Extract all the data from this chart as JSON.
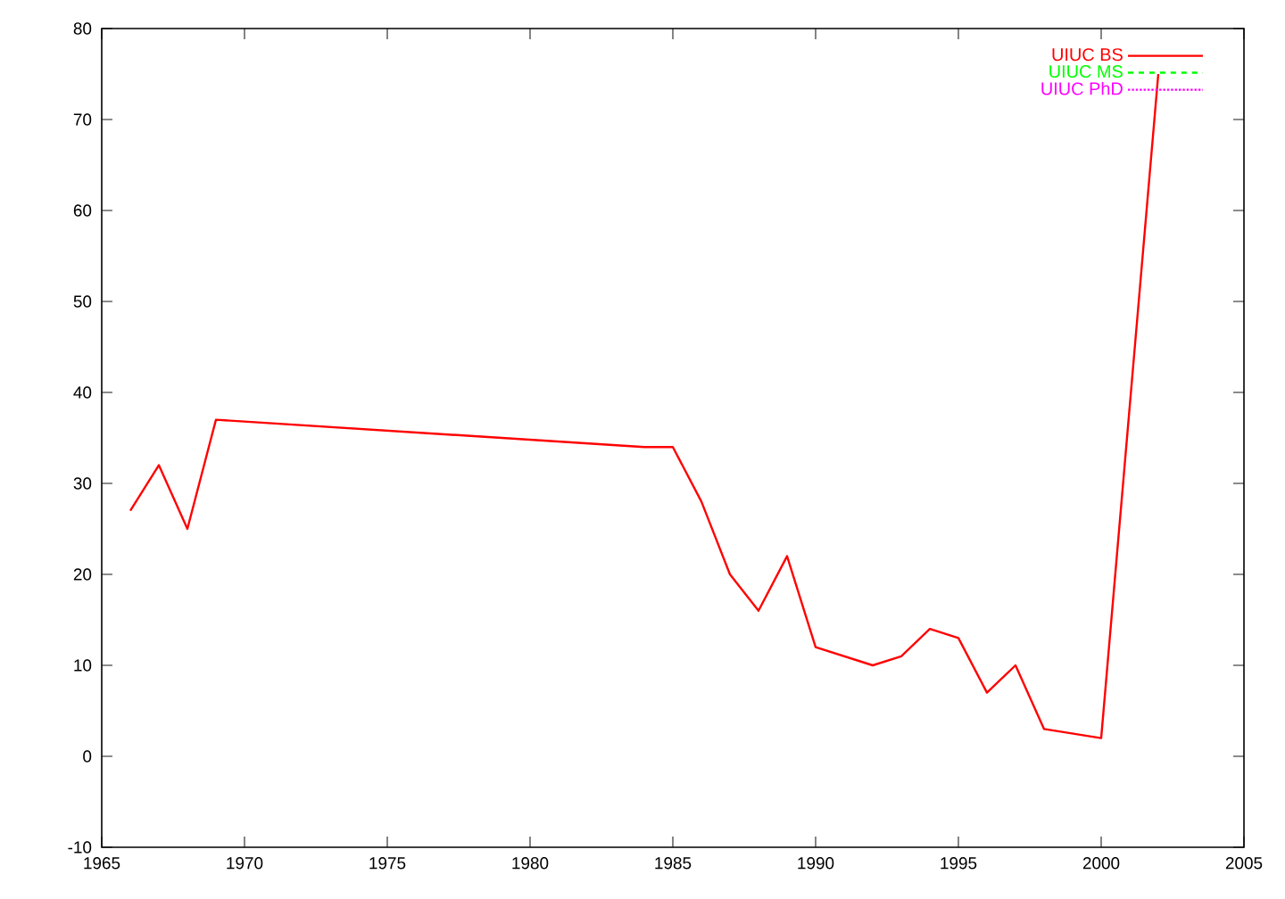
{
  "chart_data": {
    "type": "line",
    "xlim": [
      1965,
      2005
    ],
    "ylim": [
      -10,
      80
    ],
    "xticks": [
      1965,
      1970,
      1975,
      1980,
      1985,
      1990,
      1995,
      2000,
      2005
    ],
    "yticks": [
      -10,
      0,
      10,
      20,
      30,
      40,
      50,
      60,
      70,
      80
    ],
    "legend": "top right",
    "grid": false,
    "marker": "none",
    "series": [
      {
        "name": "UIUC BS",
        "color": "#ff0000",
        "line_style": "solid",
        "x": [
          1966,
          1967,
          1968,
          1969,
          1984,
          1985,
          1986,
          1987,
          1988,
          1989,
          1990,
          1992,
          1993,
          1994,
          1995,
          1996,
          1997,
          1998,
          2000,
          2002
        ],
        "values": [
          27,
          32,
          25,
          37,
          34,
          34,
          28,
          20,
          16,
          22,
          12,
          10,
          11,
          14,
          13,
          7,
          10,
          3,
          2,
          75
        ]
      },
      {
        "name": "UIUC MS",
        "color": "#00ff00",
        "line_style": "dashed"
      },
      {
        "name": "UIUC PhD",
        "color": "#ff00ff",
        "line_style": "dotted"
      }
    ]
  }
}
